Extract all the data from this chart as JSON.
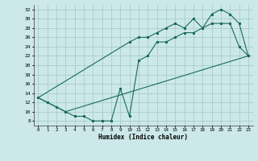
{
  "xlabel": "Humidex (Indice chaleur)",
  "bg_color": "#cce8e8",
  "grid_color": "#a0c8c8",
  "line_color": "#1a6b5a",
  "line1_x": [
    0,
    1,
    2,
    3,
    4,
    5,
    6,
    7,
    8,
    9,
    10,
    11,
    12,
    13,
    14,
    15,
    16,
    17,
    18,
    19,
    20,
    21,
    22,
    23
  ],
  "line1_y": [
    13,
    12,
    11,
    10,
    9,
    9,
    8,
    8,
    8,
    15,
    9,
    21,
    22,
    25,
    25,
    26,
    27,
    27,
    28,
    29,
    29,
    29,
    24,
    22
  ],
  "line2_x": [
    0,
    3,
    23
  ],
  "line2_y": [
    13,
    10,
    22
  ],
  "line3_x": [
    0,
    10,
    11,
    12,
    13,
    14,
    15,
    16,
    17,
    18,
    19,
    20,
    21,
    22,
    23
  ],
  "line3_y": [
    13,
    25,
    26,
    26,
    27,
    28,
    29,
    28,
    30,
    28,
    31,
    32,
    31,
    29,
    22
  ],
  "xlim": [
    -0.5,
    23.5
  ],
  "ylim": [
    7,
    33
  ],
  "yticks": [
    8,
    10,
    12,
    14,
    16,
    18,
    20,
    22,
    24,
    26,
    28,
    30,
    32
  ],
  "xticks": [
    0,
    1,
    2,
    3,
    4,
    5,
    6,
    7,
    8,
    9,
    10,
    11,
    12,
    13,
    14,
    15,
    16,
    17,
    18,
    19,
    20,
    21,
    22,
    23
  ]
}
